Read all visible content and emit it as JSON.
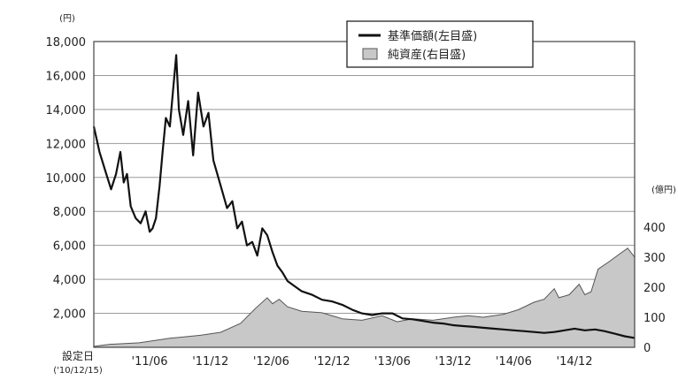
{
  "chart_data": {
    "type": "line",
    "legend": {
      "placement": "top-center",
      "items": [
        {
          "key": "nav",
          "label": "基準価額(左目盛)",
          "swatch": "line"
        },
        {
          "key": "assets",
          "label": "純資産(右目盛)",
          "swatch": "area"
        }
      ]
    },
    "y_left": {
      "unit": "(円)",
      "range": [
        0,
        18000
      ],
      "ticks": [
        {
          "value": 2000,
          "label": "2,000"
        },
        {
          "value": 4000,
          "label": "4,000"
        },
        {
          "value": 6000,
          "label": "6,000"
        },
        {
          "value": 8000,
          "label": "8,000"
        },
        {
          "value": 10000,
          "label": "10,000"
        },
        {
          "value": 12000,
          "label": "12,000"
        },
        {
          "value": 14000,
          "label": "14,000"
        },
        {
          "value": 16000,
          "label": "16,000"
        },
        {
          "value": 18000,
          "label": "18,000"
        }
      ]
    },
    "y_right": {
      "unit": "(億円)",
      "range": [
        0,
        450
      ],
      "ticks": [
        {
          "value": 0,
          "label": "0"
        },
        {
          "value": 100,
          "label": "100"
        },
        {
          "value": 200,
          "label": "200"
        },
        {
          "value": 300,
          "label": "300"
        },
        {
          "value": 400,
          "label": "400"
        }
      ]
    },
    "x_axis": {
      "range": [
        "2010-12-15",
        "2015-05-31"
      ],
      "start_label": "設定日",
      "start_sublabel": "('10/12/15)",
      "ticks": [
        {
          "date": "2011-06",
          "label": "'11/06"
        },
        {
          "date": "2011-12",
          "label": "'11/12"
        },
        {
          "date": "2012-06",
          "label": "'12/06"
        },
        {
          "date": "2012-12",
          "label": "'12/12"
        },
        {
          "date": "2013-06",
          "label": "'13/06"
        },
        {
          "date": "2013-12",
          "label": "'13/12"
        },
        {
          "date": "2014-06",
          "label": "'14/06"
        },
        {
          "date": "2014-12",
          "label": "'14/12"
        }
      ]
    },
    "grid": "horizontal",
    "colors": {
      "nav_line": "#111111",
      "assets_fill": "#c8c8c8",
      "assets_edge": "#555555",
      "grid": "#999999"
    },
    "series": [
      {
        "key": "nav",
        "axis": "left",
        "style": "line",
        "points": [
          [
            "2010-12-15",
            13000
          ],
          [
            "2011-01-01",
            11500
          ],
          [
            "2011-01-20",
            10300
          ],
          [
            "2011-02-05",
            9300
          ],
          [
            "2011-02-20",
            10200
          ],
          [
            "2011-03-05",
            11500
          ],
          [
            "2011-03-15",
            9700
          ],
          [
            "2011-03-25",
            10200
          ],
          [
            "2011-04-05",
            8300
          ],
          [
            "2011-04-20",
            7600
          ],
          [
            "2011-05-05",
            7300
          ],
          [
            "2011-05-20",
            8000
          ],
          [
            "2011-06-01",
            6800
          ],
          [
            "2011-06-10",
            7000
          ],
          [
            "2011-06-20",
            7600
          ],
          [
            "2011-07-01",
            9500
          ],
          [
            "2011-07-10",
            11500
          ],
          [
            "2011-07-20",
            13500
          ],
          [
            "2011-08-01",
            13000
          ],
          [
            "2011-08-10",
            15000
          ],
          [
            "2011-08-20",
            17200
          ],
          [
            "2011-08-28",
            14000
          ],
          [
            "2011-09-10",
            12500
          ],
          [
            "2011-09-25",
            14500
          ],
          [
            "2011-10-10",
            11300
          ],
          [
            "2011-10-25",
            15000
          ],
          [
            "2011-11-10",
            13000
          ],
          [
            "2011-11-25",
            13800
          ],
          [
            "2011-12-10",
            11000
          ],
          [
            "2012-01-01",
            9500
          ],
          [
            "2012-01-20",
            8200
          ],
          [
            "2012-02-05",
            8600
          ],
          [
            "2012-02-20",
            7000
          ],
          [
            "2012-03-05",
            7400
          ],
          [
            "2012-03-20",
            6000
          ],
          [
            "2012-04-05",
            6200
          ],
          [
            "2012-04-20",
            5400
          ],
          [
            "2012-05-05",
            7000
          ],
          [
            "2012-05-20",
            6600
          ],
          [
            "2012-06-05",
            5600
          ],
          [
            "2012-06-20",
            4800
          ],
          [
            "2012-07-05",
            4400
          ],
          [
            "2012-07-20",
            3900
          ],
          [
            "2012-08-10",
            3600
          ],
          [
            "2012-09-01",
            3300
          ],
          [
            "2012-10-01",
            3100
          ],
          [
            "2012-11-01",
            2800
          ],
          [
            "2012-12-01",
            2700
          ],
          [
            "2013-01-01",
            2500
          ],
          [
            "2013-02-01",
            2200
          ],
          [
            "2013-03-01",
            2000
          ],
          [
            "2013-04-01",
            1900
          ],
          [
            "2013-05-01",
            2000
          ],
          [
            "2013-06-01",
            2000
          ],
          [
            "2013-07-01",
            1700
          ],
          [
            "2013-08-01",
            1650
          ],
          [
            "2013-09-01",
            1550
          ],
          [
            "2013-10-01",
            1450
          ],
          [
            "2013-11-01",
            1400
          ],
          [
            "2013-12-01",
            1300
          ],
          [
            "2014-01-01",
            1250
          ],
          [
            "2014-02-01",
            1200
          ],
          [
            "2014-03-01",
            1150
          ],
          [
            "2014-04-01",
            1100
          ],
          [
            "2014-05-01",
            1050
          ],
          [
            "2014-06-01",
            1000
          ],
          [
            "2014-07-01",
            950
          ],
          [
            "2014-08-01",
            900
          ],
          [
            "2014-09-01",
            850
          ],
          [
            "2014-10-01",
            900
          ],
          [
            "2014-11-01",
            1000
          ],
          [
            "2014-12-01",
            1100
          ],
          [
            "2015-01-01",
            1000
          ],
          [
            "2015-02-01",
            1050
          ],
          [
            "2015-03-01",
            950
          ],
          [
            "2015-04-01",
            800
          ],
          [
            "2015-05-01",
            650
          ],
          [
            "2015-05-31",
            550
          ]
        ]
      },
      {
        "key": "assets",
        "axis": "right",
        "style": "area",
        "points": [
          [
            "2010-12-15",
            3
          ],
          [
            "2011-02-01",
            10
          ],
          [
            "2011-05-01",
            15
          ],
          [
            "2011-08-01",
            30
          ],
          [
            "2011-11-01",
            40
          ],
          [
            "2012-01-01",
            50
          ],
          [
            "2012-03-01",
            80
          ],
          [
            "2012-04-15",
            130
          ],
          [
            "2012-05-20",
            165
          ],
          [
            "2012-06-05",
            145
          ],
          [
            "2012-06-25",
            160
          ],
          [
            "2012-07-20",
            135
          ],
          [
            "2012-09-01",
            120
          ],
          [
            "2012-11-01",
            115
          ],
          [
            "2013-01-01",
            95
          ],
          [
            "2013-03-01",
            90
          ],
          [
            "2013-05-01",
            105
          ],
          [
            "2013-06-15",
            85
          ],
          [
            "2013-08-01",
            95
          ],
          [
            "2013-10-01",
            90
          ],
          [
            "2013-12-01",
            100
          ],
          [
            "2014-01-15",
            105
          ],
          [
            "2014-03-01",
            100
          ],
          [
            "2014-05-01",
            110
          ],
          [
            "2014-06-15",
            125
          ],
          [
            "2014-08-01",
            150
          ],
          [
            "2014-09-01",
            160
          ],
          [
            "2014-10-01",
            195
          ],
          [
            "2014-10-15",
            165
          ],
          [
            "2014-11-15",
            175
          ],
          [
            "2014-12-15",
            210
          ],
          [
            "2015-01-01",
            175
          ],
          [
            "2015-01-20",
            185
          ],
          [
            "2015-02-10",
            260
          ],
          [
            "2015-03-15",
            285
          ],
          [
            "2015-04-15",
            310
          ],
          [
            "2015-05-10",
            330
          ],
          [
            "2015-05-31",
            300
          ]
        ]
      }
    ]
  }
}
